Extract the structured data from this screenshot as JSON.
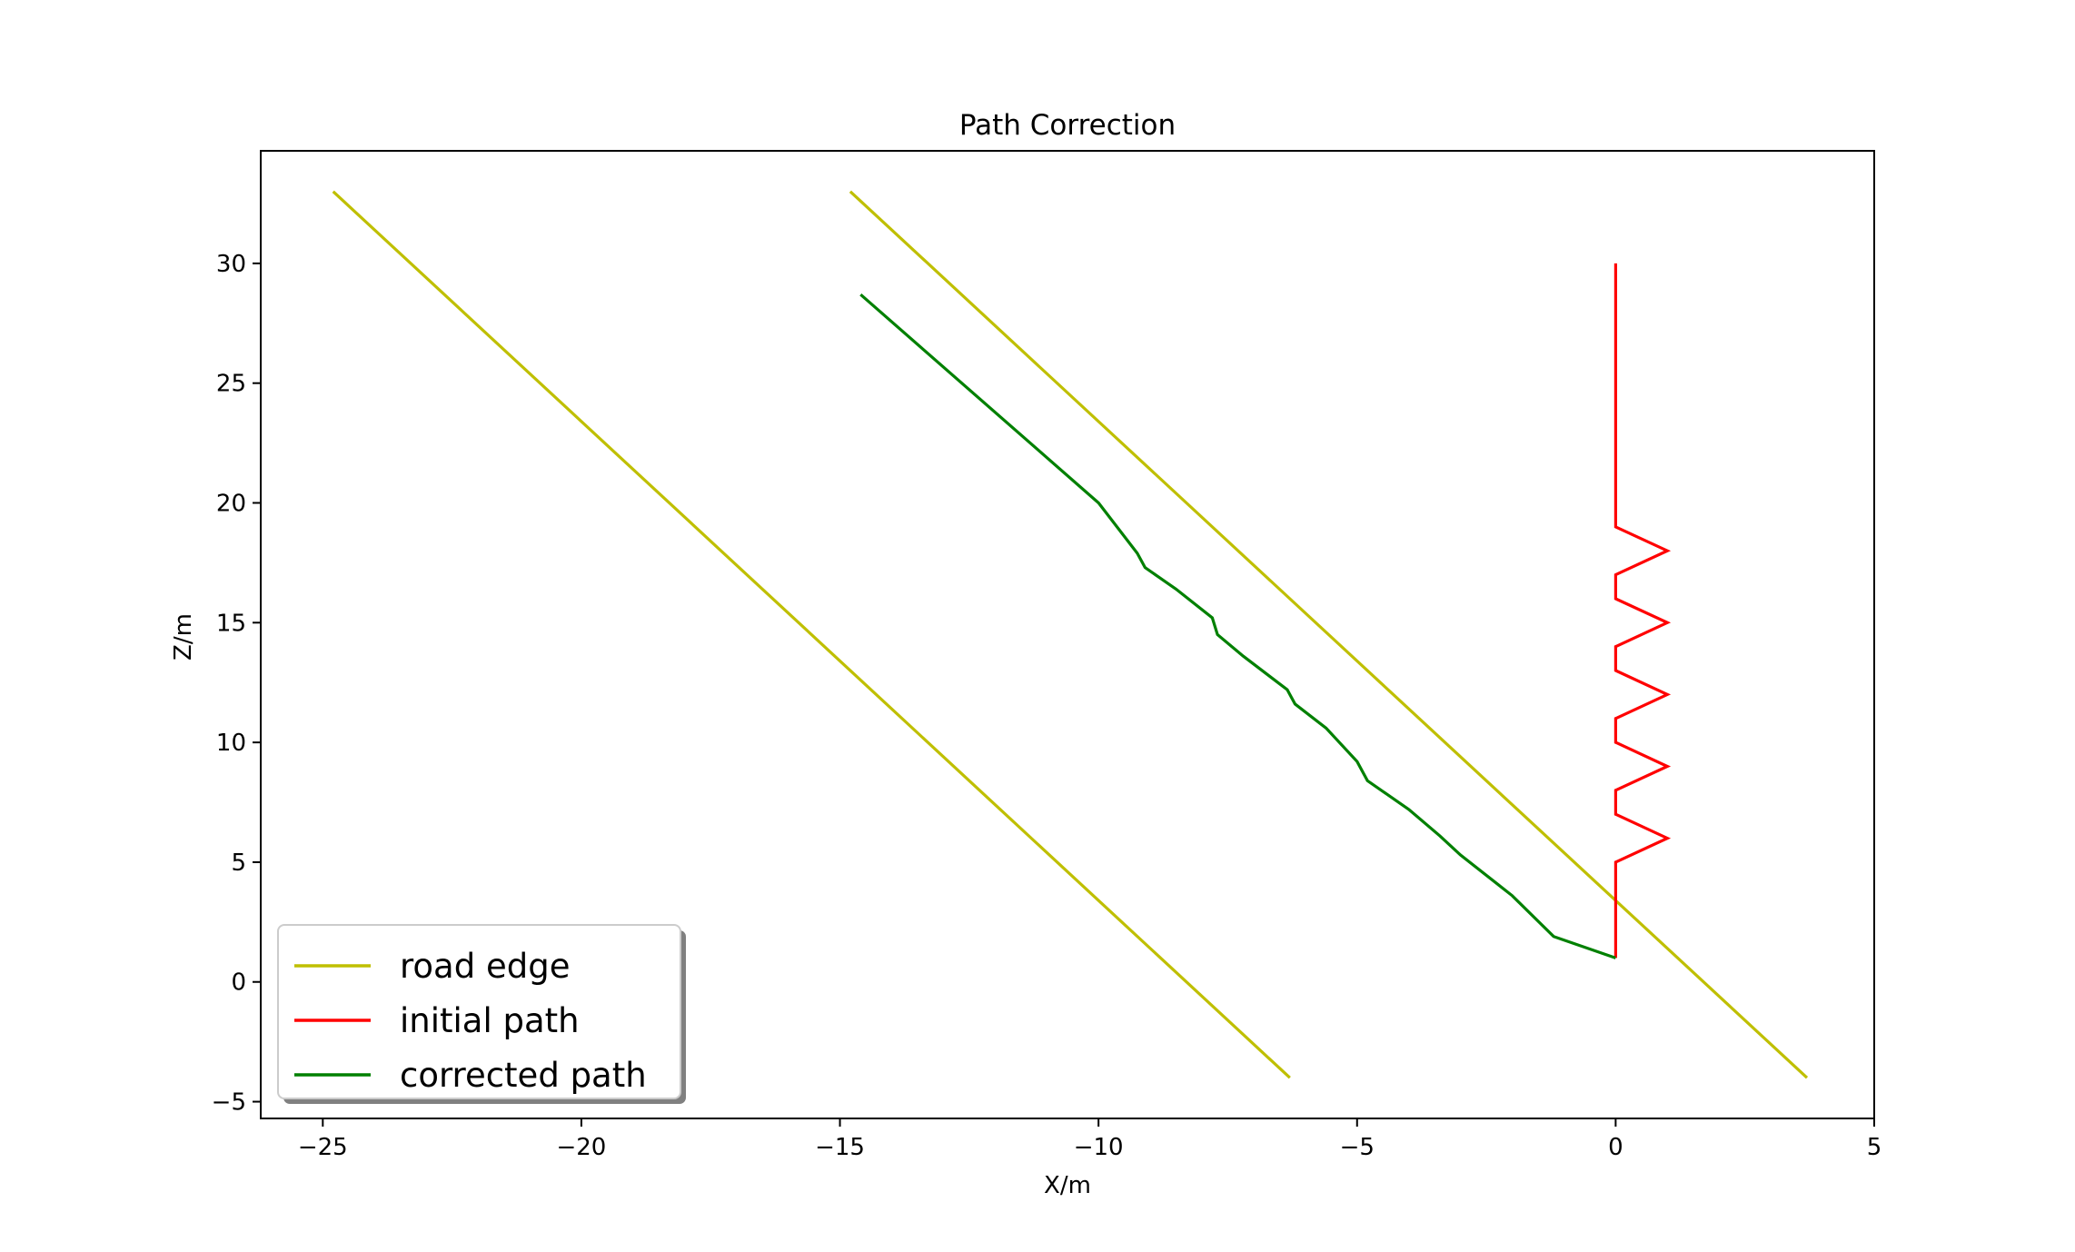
{
  "chart_data": {
    "type": "line",
    "title": "Path Correction",
    "xlabel": "X/m",
    "ylabel": "Z/m",
    "xlim": [
      -26.2,
      5.0
    ],
    "ylim": [
      -5.7,
      34.7
    ],
    "xticks": [
      -25,
      -20,
      -15,
      -10,
      -5,
      0,
      5
    ],
    "yticks": [
      -5,
      0,
      5,
      10,
      15,
      20,
      25,
      30
    ],
    "xtick_labels": [
      "−25",
      "−20",
      "−15",
      "−10",
      "−5",
      "0",
      "5"
    ],
    "ytick_labels": [
      "−5",
      "0",
      "5",
      "10",
      "15",
      "20",
      "25",
      "30"
    ],
    "grid": false,
    "legend_position": "lower-left",
    "series": [
      {
        "name": "road edge",
        "color": "#bfbf00",
        "x": [
          -24.8,
          -6.3
        ],
        "y": [
          33.0,
          -4.0
        ]
      },
      {
        "name": "road edge",
        "color": "#bfbf00",
        "x": [
          -14.8,
          3.7
        ],
        "y": [
          33.0,
          -4.0
        ]
      },
      {
        "name": "initial path",
        "color": "#ff0000",
        "x": [
          0,
          0,
          1,
          0,
          0,
          1,
          0,
          0,
          1,
          0,
          0,
          1,
          0,
          0,
          1,
          0,
          0,
          0
        ],
        "y": [
          1,
          5,
          6,
          7,
          8,
          9,
          10,
          11,
          12,
          13,
          14,
          15,
          16,
          17,
          18,
          19,
          20,
          30
        ]
      },
      {
        "name": "corrected path",
        "color": "#008000",
        "x": [
          0,
          -1.2,
          -2.0,
          -3.0,
          -3.4,
          -4.0,
          -4.8,
          -5.0,
          -5.6,
          -6.2,
          -6.35,
          -7.2,
          -7.7,
          -7.8,
          -8.5,
          -9.1,
          -9.25,
          -10.0,
          -14.6
        ],
        "y": [
          1.0,
          1.9,
          3.6,
          5.3,
          6.1,
          7.2,
          8.4,
          9.2,
          10.6,
          11.6,
          12.2,
          13.6,
          14.5,
          15.2,
          16.4,
          17.3,
          17.9,
          20.0,
          28.7
        ]
      }
    ],
    "legend_entries": [
      {
        "label": "road edge",
        "color": "#bfbf00"
      },
      {
        "label": "initial path",
        "color": "#ff0000"
      },
      {
        "label": "corrected path",
        "color": "#008000"
      }
    ]
  }
}
